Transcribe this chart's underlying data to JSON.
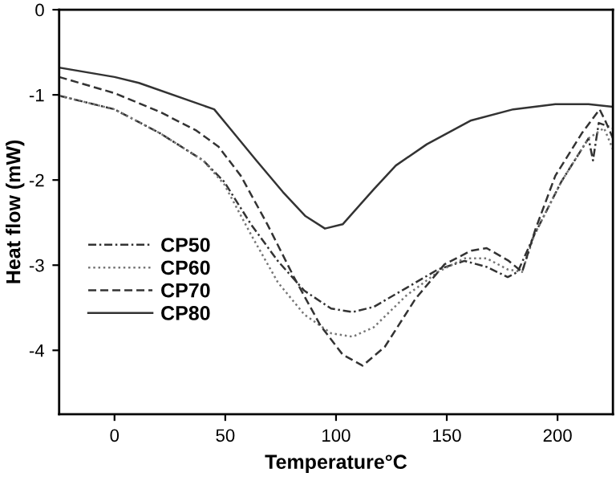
{
  "chart_data": {
    "type": "line",
    "xlabel": "Temperature°C",
    "ylabel": "Heat flow (mW)",
    "xlim": [
      -25,
      225
    ],
    "ylim": [
      -4.75,
      0
    ],
    "xticks": [
      0,
      50,
      100,
      150,
      200
    ],
    "yticks": [
      0,
      -1,
      -2,
      -3,
      -4
    ],
    "grid": false,
    "legend": "center left",
    "series": [
      {
        "name": "CP50",
        "color": "#333333",
        "line_style": "dashdot",
        "x": [
          -25,
          0,
          20.5,
          40,
          49.5,
          61.6,
          73.7,
          85.7,
          97.8,
          107.5,
          117,
          131.6,
          146,
          158,
          168,
          177.5,
          182,
          189.6,
          201.7,
          214,
          216,
          218.6,
          225
        ],
        "values": [
          -1.01,
          -1.17,
          -1.45,
          -1.77,
          -2.02,
          -2.52,
          -2.95,
          -3.3,
          -3.51,
          -3.55,
          -3.49,
          -3.27,
          -3.05,
          -2.95,
          -3.02,
          -3.14,
          -3.08,
          -2.64,
          -2.02,
          -1.51,
          -1.77,
          -1.33,
          -1.39
        ]
      },
      {
        "name": "CP60",
        "color": "#777777",
        "line_style": "dotted",
        "x": [
          -25,
          0,
          20.5,
          40,
          49.5,
          61.6,
          73.7,
          85.7,
          97.8,
          107.5,
          117,
          131.6,
          146,
          158,
          168,
          177.5,
          184,
          189.6,
          201.7,
          214,
          221,
          225
        ],
        "values": [
          -1.01,
          -1.17,
          -1.45,
          -1.77,
          -2.05,
          -2.64,
          -3.2,
          -3.58,
          -3.8,
          -3.84,
          -3.73,
          -3.36,
          -3.08,
          -2.92,
          -2.92,
          -3.05,
          -3.08,
          -2.64,
          -2.02,
          -1.51,
          -1.39,
          -1.64
        ]
      },
      {
        "name": "CP70",
        "color": "#333333",
        "line_style": "dashed",
        "x": [
          -25,
          0,
          20.5,
          37,
          47,
          57,
          69,
          81,
          93,
          103,
          112,
          122,
          136,
          149,
          161,
          168,
          178,
          184,
          190,
          199,
          211,
          219,
          222,
          225
        ],
        "values": [
          -0.79,
          -0.98,
          -1.2,
          -1.42,
          -1.61,
          -1.95,
          -2.52,
          -3.14,
          -3.71,
          -4.05,
          -4.18,
          -3.96,
          -3.39,
          -2.99,
          -2.83,
          -2.8,
          -2.95,
          -3.08,
          -2.58,
          -1.95,
          -1.45,
          -1.17,
          -1.33,
          -1.51
        ]
      },
      {
        "name": "CP80",
        "color": "#333333",
        "line_style": "solid",
        "x": [
          -25,
          0,
          11,
          45,
          52,
          64,
          76,
          86,
          95,
          103,
          117,
          127,
          141,
          161,
          180,
          199,
          214,
          225
        ],
        "values": [
          -0.68,
          -0.79,
          -0.86,
          -1.17,
          -1.39,
          -1.77,
          -2.14,
          -2.42,
          -2.57,
          -2.52,
          -2.11,
          -1.83,
          -1.58,
          -1.3,
          -1.17,
          -1.11,
          -1.11,
          -1.14
        ]
      }
    ]
  }
}
